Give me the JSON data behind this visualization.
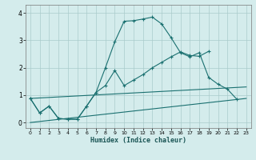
{
  "xlabel": "Humidex (Indice chaleur)",
  "background_color": "#d4ecec",
  "grid_color": "#aacccc",
  "line_color": "#1a7070",
  "xlim": [
    -0.5,
    23.5
  ],
  "ylim": [
    -0.2,
    4.3
  ],
  "xticks": [
    0,
    1,
    2,
    3,
    4,
    5,
    6,
    7,
    8,
    9,
    10,
    11,
    12,
    13,
    14,
    15,
    16,
    17,
    18,
    19,
    20,
    21,
    22,
    23
  ],
  "yticks": [
    0,
    1,
    2,
    3,
    4
  ],
  "line1_x": [
    0,
    1,
    2,
    3,
    4,
    5,
    6,
    7,
    8,
    9,
    10,
    11,
    12,
    13,
    14,
    15,
    16,
    17,
    18,
    19,
    20,
    21,
    22
  ],
  "line1_y": [
    0.88,
    0.35,
    0.6,
    0.15,
    0.12,
    0.12,
    0.6,
    1.1,
    2.0,
    2.95,
    3.7,
    3.72,
    3.78,
    3.85,
    3.6,
    3.1,
    2.55,
    2.4,
    2.55,
    1.65,
    1.4,
    1.22,
    0.85
  ],
  "line2_x": [
    0,
    1,
    2,
    3,
    4,
    5,
    6,
    7,
    8,
    9,
    10,
    11,
    12,
    13,
    14,
    15,
    16,
    17,
    18,
    19
  ],
  "line2_y": [
    0.88,
    0.35,
    0.6,
    0.15,
    0.12,
    0.12,
    0.6,
    1.1,
    1.35,
    1.9,
    1.35,
    1.55,
    1.75,
    2.0,
    2.2,
    2.4,
    2.58,
    2.45,
    2.42,
    2.6
  ],
  "line3_x": [
    0,
    23
  ],
  "line3_y": [
    0.0,
    0.88
  ],
  "line4_x": [
    0,
    23
  ],
  "line4_y": [
    0.88,
    1.3
  ]
}
